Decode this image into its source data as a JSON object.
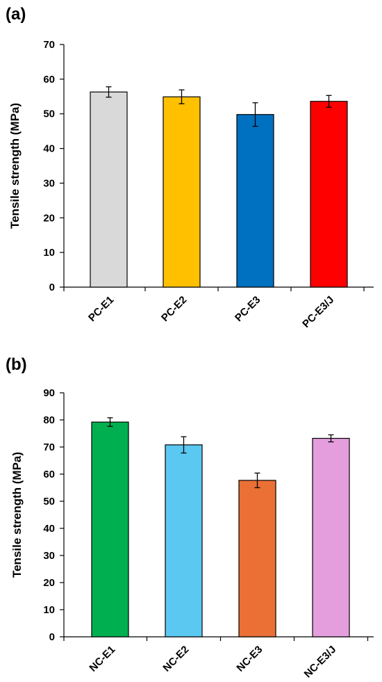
{
  "chart_data": [
    {
      "panel": "(a)",
      "type": "bar",
      "ylabel": "Tensile strength (MPa)",
      "xlabel": "",
      "ylim": [
        0,
        70
      ],
      "yticks": [
        0,
        10,
        20,
        30,
        40,
        50,
        60,
        70
      ],
      "grid": false,
      "categories": [
        "PC-E1",
        "PC-E2",
        "PC-E3",
        "PC-E3/J"
      ],
      "values": [
        56.3,
        54.9,
        49.8,
        53.6
      ],
      "errors": [
        1.5,
        2.0,
        3.4,
        1.7
      ],
      "colors": [
        "#d9d9d9",
        "#ffc000",
        "#0070c0",
        "#ff0000"
      ]
    },
    {
      "panel": "(b)",
      "type": "bar",
      "ylabel": "Tensile strength (MPa)",
      "xlabel": "",
      "ylim": [
        0,
        90
      ],
      "yticks": [
        0,
        10,
        20,
        30,
        40,
        50,
        60,
        70,
        80,
        90
      ],
      "grid": false,
      "categories": [
        "NC-E1",
        "NC-E2",
        "NC-E3",
        "NC-E3/J"
      ],
      "values": [
        79.2,
        70.8,
        57.7,
        73.2
      ],
      "errors": [
        1.6,
        3.0,
        2.7,
        1.3
      ],
      "colors": [
        "#00b050",
        "#5bc8f2",
        "#ea7035",
        "#e49edd"
      ]
    }
  ]
}
